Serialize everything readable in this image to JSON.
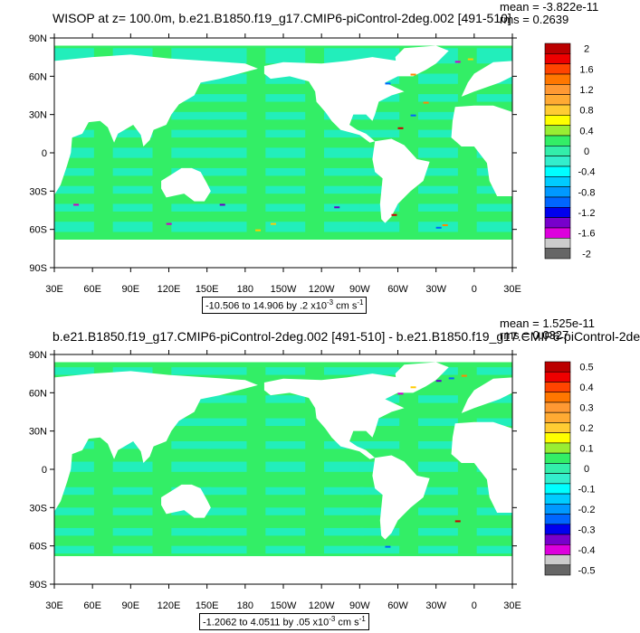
{
  "colors": {
    "ocean_base": "#33ee66",
    "ocean_alt": "#22eebb",
    "land": "#ffffff",
    "extreme_pos": [
      "#ffcc00",
      "#ff8800",
      "#cc0000"
    ],
    "extreme_neg": [
      "#0066ff",
      "#6600cc",
      "#cc00cc"
    ]
  },
  "axes": {
    "lat_labels": [
      "90N",
      "60N",
      "30N",
      "0",
      "30S",
      "60S",
      "90S"
    ],
    "lon_labels": [
      "30E",
      "60E",
      "90E",
      "120E",
      "150E",
      "180",
      "150W",
      "120W",
      "90W",
      "60W",
      "30W",
      "0",
      "30E"
    ]
  },
  "panels": [
    {
      "id": "top",
      "title": "WISOP at z= 100.0m, b.e21.B1850.f19_g17.CMIP6-piControl-2deg.002 [491-510]",
      "mean_label": "mean = -3.822e-11",
      "rms_label": "rms = 0.2639",
      "range_label": "-10.506 to 14.906 by .2 x10",
      "range_exp": "-3",
      "range_unit": " cm s",
      "range_unit_exp": "-1",
      "colorbar": {
        "colors": [
          "#bb0000",
          "#ee0000",
          "#ff4400",
          "#ff7700",
          "#ff9933",
          "#ffaa33",
          "#ffcc33",
          "#ffff00",
          "#99ee33",
          "#33ee66",
          "#33eeaa",
          "#33eecc",
          "#00ffff",
          "#00ccff",
          "#0099ff",
          "#0066ff",
          "#0000ee",
          "#7700cc",
          "#dd00dd",
          "#cccccc",
          "#666666"
        ],
        "labels": [
          "2",
          "1.6",
          "1.2",
          "0.8",
          "0.4",
          "0",
          "-0.4",
          "-0.8",
          "-1.2",
          "-1.6",
          "-2"
        ]
      }
    },
    {
      "id": "bottom",
      "title": "b.e21.B1850.f19_g17.CMIP6-piControl-2deg.002 [491-510] - b.e21.B1850.f19_g17.CMIP6-piControl-2de",
      "mean_label": "mean = 1.525e-11",
      "rms_label": "rms = 0.0327",
      "range_label": "-1.2062 to 4.0511 by .05 x10",
      "range_exp": "-3",
      "range_unit": " cm s",
      "range_unit_exp": "-1",
      "colorbar": {
        "colors": [
          "#bb0000",
          "#ee0000",
          "#ff4400",
          "#ff7700",
          "#ff9933",
          "#ffaa33",
          "#ffcc33",
          "#ffff00",
          "#99ee33",
          "#33ee66",
          "#33eeaa",
          "#33eecc",
          "#00ffff",
          "#00ccff",
          "#0099ff",
          "#0066ff",
          "#0000ee",
          "#7700cc",
          "#dd00dd",
          "#cccccc",
          "#666666"
        ],
        "labels": [
          "0.5",
          "0.4",
          "0.3",
          "0.2",
          "0.1",
          "0",
          "-0.1",
          "-0.2",
          "-0.3",
          "-0.4",
          "-0.5"
        ]
      }
    }
  ]
}
